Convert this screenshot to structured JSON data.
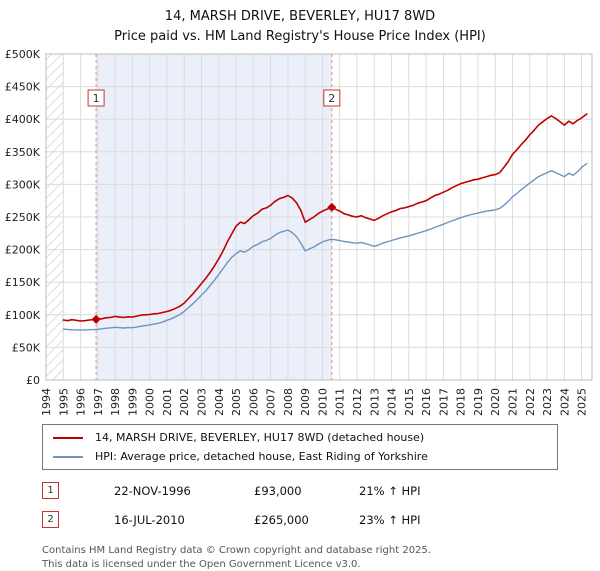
{
  "title": "14, MARSH DRIVE, BEVERLEY, HU17 8WD",
  "subtitle": "Price paid vs. HM Land Registry's House Price Index (HPI)",
  "chart_data": {
    "type": "line",
    "x_range": [
      1994,
      2025.6
    ],
    "ylim": [
      0,
      500000
    ],
    "y_step": 50000,
    "y_ticks": [
      "£0",
      "£50K",
      "£100K",
      "£150K",
      "£200K",
      "£250K",
      "£300K",
      "£350K",
      "£400K",
      "£450K",
      "£500K"
    ],
    "x_ticks": [
      1994,
      1995,
      1996,
      1997,
      1998,
      1999,
      2000,
      2001,
      2002,
      2003,
      2004,
      2005,
      2006,
      2007,
      2008,
      2009,
      2010,
      2011,
      2012,
      2013,
      2014,
      2015,
      2016,
      2017,
      2018,
      2019,
      2020,
      2021,
      2022,
      2023,
      2024,
      2025
    ],
    "grid": true,
    "hatch_end": 1995.0,
    "shade_color": "#eaeff9",
    "series": [
      {
        "name": "14, MARSH DRIVE, BEVERLEY, HU17 8WD (detached house)",
        "color": "#c00000",
        "width": 1.6,
        "points": [
          [
            1995.0,
            92000
          ],
          [
            1995.25,
            91000
          ],
          [
            1995.5,
            92500
          ],
          [
            1995.75,
            91500
          ],
          [
            1996.0,
            90500
          ],
          [
            1996.25,
            91000
          ],
          [
            1996.5,
            92000
          ],
          [
            1996.75,
            92500
          ],
          [
            1996.9,
            93000
          ],
          [
            1997.25,
            94000
          ],
          [
            1997.5,
            95500
          ],
          [
            1997.75,
            96000
          ],
          [
            1998.0,
            97500
          ],
          [
            1998.25,
            96500
          ],
          [
            1998.5,
            96000
          ],
          [
            1998.75,
            97000
          ],
          [
            1999.0,
            96500
          ],
          [
            1999.25,
            98000
          ],
          [
            1999.5,
            99500
          ],
          [
            1999.75,
            100000
          ],
          [
            2000.0,
            100500
          ],
          [
            2000.25,
            101500
          ],
          [
            2000.5,
            102000
          ],
          [
            2000.75,
            103500
          ],
          [
            2001.0,
            105000
          ],
          [
            2001.25,
            107000
          ],
          [
            2001.5,
            110000
          ],
          [
            2001.75,
            113000
          ],
          [
            2002.0,
            118000
          ],
          [
            2002.25,
            125000
          ],
          [
            2002.5,
            132000
          ],
          [
            2002.75,
            140000
          ],
          [
            2003.0,
            148000
          ],
          [
            2003.25,
            156000
          ],
          [
            2003.5,
            165000
          ],
          [
            2003.75,
            175000
          ],
          [
            2004.0,
            186000
          ],
          [
            2004.25,
            198000
          ],
          [
            2004.5,
            212000
          ],
          [
            2004.75,
            224000
          ],
          [
            2005.0,
            236000
          ],
          [
            2005.25,
            242000
          ],
          [
            2005.5,
            240000
          ],
          [
            2005.75,
            246000
          ],
          [
            2006.0,
            252000
          ],
          [
            2006.25,
            256000
          ],
          [
            2006.5,
            262000
          ],
          [
            2006.75,
            264000
          ],
          [
            2007.0,
            268000
          ],
          [
            2007.25,
            274000
          ],
          [
            2007.5,
            278000
          ],
          [
            2007.75,
            280000
          ],
          [
            2008.0,
            283000
          ],
          [
            2008.25,
            279000
          ],
          [
            2008.5,
            272000
          ],
          [
            2008.75,
            260000
          ],
          [
            2009.0,
            242000
          ],
          [
            2009.25,
            246000
          ],
          [
            2009.5,
            250000
          ],
          [
            2009.75,
            255000
          ],
          [
            2010.0,
            259000
          ],
          [
            2010.25,
            262000
          ],
          [
            2010.54,
            265000
          ],
          [
            2010.75,
            262000
          ],
          [
            2011.0,
            259000
          ],
          [
            2011.25,
            255000
          ],
          [
            2011.5,
            253000
          ],
          [
            2011.75,
            251000
          ],
          [
            2012.0,
            250000
          ],
          [
            2012.25,
            252000
          ],
          [
            2012.5,
            249000
          ],
          [
            2012.75,
            247000
          ],
          [
            2013.0,
            245000
          ],
          [
            2013.25,
            248000
          ],
          [
            2013.5,
            252000
          ],
          [
            2013.75,
            255000
          ],
          [
            2014.0,
            258000
          ],
          [
            2014.25,
            260000
          ],
          [
            2014.5,
            263000
          ],
          [
            2014.75,
            264000
          ],
          [
            2015.0,
            266000
          ],
          [
            2015.25,
            268000
          ],
          [
            2015.5,
            271000
          ],
          [
            2015.75,
            273000
          ],
          [
            2016.0,
            275000
          ],
          [
            2016.25,
            279000
          ],
          [
            2016.5,
            283000
          ],
          [
            2016.75,
            285000
          ],
          [
            2017.0,
            288000
          ],
          [
            2017.25,
            291000
          ],
          [
            2017.5,
            295000
          ],
          [
            2017.75,
            298000
          ],
          [
            2018.0,
            301000
          ],
          [
            2018.25,
            303000
          ],
          [
            2018.5,
            305000
          ],
          [
            2018.75,
            307000
          ],
          [
            2019.0,
            308000
          ],
          [
            2019.25,
            310000
          ],
          [
            2019.5,
            312000
          ],
          [
            2019.75,
            314000
          ],
          [
            2020.0,
            315000
          ],
          [
            2020.25,
            318000
          ],
          [
            2020.5,
            326000
          ],
          [
            2020.75,
            335000
          ],
          [
            2021.0,
            346000
          ],
          [
            2021.25,
            353000
          ],
          [
            2021.5,
            361000
          ],
          [
            2021.75,
            368000
          ],
          [
            2022.0,
            376000
          ],
          [
            2022.25,
            383000
          ],
          [
            2022.5,
            391000
          ],
          [
            2022.75,
            396000
          ],
          [
            2023.0,
            401000
          ],
          [
            2023.25,
            405000
          ],
          [
            2023.5,
            401000
          ],
          [
            2023.75,
            396000
          ],
          [
            2024.0,
            391000
          ],
          [
            2024.25,
            397000
          ],
          [
            2024.5,
            393000
          ],
          [
            2024.75,
            398000
          ],
          [
            2025.0,
            402000
          ],
          [
            2025.3,
            408000
          ]
        ]
      },
      {
        "name": "HPI: Average price, detached house, East Riding of Yorkshire",
        "color": "#6e94bf",
        "width": 1.4,
        "points": [
          [
            1995.0,
            78000
          ],
          [
            1995.25,
            77500
          ],
          [
            1995.5,
            77000
          ],
          [
            1995.75,
            76800
          ],
          [
            1996.0,
            76500
          ],
          [
            1996.25,
            76800
          ],
          [
            1996.5,
            77000
          ],
          [
            1996.75,
            77300
          ],
          [
            1997.0,
            77800
          ],
          [
            1997.25,
            78500
          ],
          [
            1997.5,
            79500
          ],
          [
            1997.75,
            80000
          ],
          [
            1998.0,
            80800
          ],
          [
            1998.25,
            80200
          ],
          [
            1998.5,
            79800
          ],
          [
            1998.75,
            80400
          ],
          [
            1999.0,
            80200
          ],
          [
            1999.25,
            81200
          ],
          [
            1999.5,
            82500
          ],
          [
            1999.75,
            83500
          ],
          [
            2000.0,
            84500
          ],
          [
            2000.25,
            85800
          ],
          [
            2000.5,
            87000
          ],
          [
            2000.75,
            89000
          ],
          [
            2001.0,
            91500
          ],
          [
            2001.25,
            94000
          ],
          [
            2001.5,
            97000
          ],
          [
            2001.75,
            100500
          ],
          [
            2002.0,
            105000
          ],
          [
            2002.25,
            111000
          ],
          [
            2002.5,
            117000
          ],
          [
            2002.75,
            123500
          ],
          [
            2003.0,
            130000
          ],
          [
            2003.25,
            137000
          ],
          [
            2003.5,
            145000
          ],
          [
            2003.75,
            153000
          ],
          [
            2004.0,
            162000
          ],
          [
            2004.25,
            171000
          ],
          [
            2004.5,
            180000
          ],
          [
            2004.75,
            188000
          ],
          [
            2005.0,
            194000
          ],
          [
            2005.25,
            198000
          ],
          [
            2005.5,
            196000
          ],
          [
            2005.75,
            200000
          ],
          [
            2006.0,
            205000
          ],
          [
            2006.25,
            208000
          ],
          [
            2006.5,
            212000
          ],
          [
            2006.75,
            214000
          ],
          [
            2007.0,
            217000
          ],
          [
            2007.25,
            222000
          ],
          [
            2007.5,
            226000
          ],
          [
            2007.75,
            228000
          ],
          [
            2008.0,
            230000
          ],
          [
            2008.25,
            226000
          ],
          [
            2008.5,
            220000
          ],
          [
            2008.75,
            210000
          ],
          [
            2009.0,
            198000
          ],
          [
            2009.25,
            201000
          ],
          [
            2009.5,
            204000
          ],
          [
            2009.75,
            208000
          ],
          [
            2010.0,
            212000
          ],
          [
            2010.25,
            214000
          ],
          [
            2010.5,
            216000
          ],
          [
            2010.75,
            215000
          ],
          [
            2011.0,
            214000
          ],
          [
            2011.25,
            212500
          ],
          [
            2011.5,
            211500
          ],
          [
            2011.75,
            210500
          ],
          [
            2012.0,
            210000
          ],
          [
            2012.25,
            211000
          ],
          [
            2012.5,
            209000
          ],
          [
            2012.75,
            207000
          ],
          [
            2013.0,
            205000
          ],
          [
            2013.25,
            207000
          ],
          [
            2013.5,
            210000
          ],
          [
            2013.75,
            212000
          ],
          [
            2014.0,
            214000
          ],
          [
            2014.25,
            216000
          ],
          [
            2014.5,
            218000
          ],
          [
            2014.75,
            219500
          ],
          [
            2015.0,
            221000
          ],
          [
            2015.25,
            223000
          ],
          [
            2015.5,
            225000
          ],
          [
            2015.75,
            227000
          ],
          [
            2016.0,
            229000
          ],
          [
            2016.25,
            231500
          ],
          [
            2016.5,
            234000
          ],
          [
            2016.75,
            236500
          ],
          [
            2017.0,
            239000
          ],
          [
            2017.25,
            241500
          ],
          [
            2017.5,
            244000
          ],
          [
            2017.75,
            246500
          ],
          [
            2018.0,
            249000
          ],
          [
            2018.25,
            251000
          ],
          [
            2018.5,
            253000
          ],
          [
            2018.75,
            254500
          ],
          [
            2019.0,
            256000
          ],
          [
            2019.25,
            257500
          ],
          [
            2019.5,
            259000
          ],
          [
            2019.75,
            260000
          ],
          [
            2020.0,
            261000
          ],
          [
            2020.25,
            263000
          ],
          [
            2020.5,
            268000
          ],
          [
            2020.75,
            274000
          ],
          [
            2021.0,
            281000
          ],
          [
            2021.25,
            286000
          ],
          [
            2021.5,
            292000
          ],
          [
            2021.75,
            297000
          ],
          [
            2022.0,
            302000
          ],
          [
            2022.25,
            307000
          ],
          [
            2022.5,
            312000
          ],
          [
            2022.75,
            315000
          ],
          [
            2023.0,
            318000
          ],
          [
            2023.25,
            321000
          ],
          [
            2023.5,
            318000
          ],
          [
            2023.75,
            315000
          ],
          [
            2024.0,
            312000
          ],
          [
            2024.25,
            317000
          ],
          [
            2024.5,
            314000
          ],
          [
            2024.75,
            319000
          ],
          [
            2025.0,
            326000
          ],
          [
            2025.3,
            332000
          ]
        ]
      }
    ],
    "markers": [
      {
        "label": "1",
        "x": 1996.9,
        "y": 93000
      },
      {
        "label": "2",
        "x": 2010.54,
        "y": 265000
      }
    ]
  },
  "transactions": [
    {
      "num": "1",
      "date": "22-NOV-1996",
      "price": "£93,000",
      "hpi": "21% ↑ HPI"
    },
    {
      "num": "2",
      "date": "16-JUL-2010",
      "price": "£265,000",
      "hpi": "23% ↑ HPI"
    }
  ],
  "footer": {
    "line1": "Contains HM Land Registry data © Crown copyright and database right 2025.",
    "line2": "This data is licensed under the Open Government Licence v3.0."
  }
}
